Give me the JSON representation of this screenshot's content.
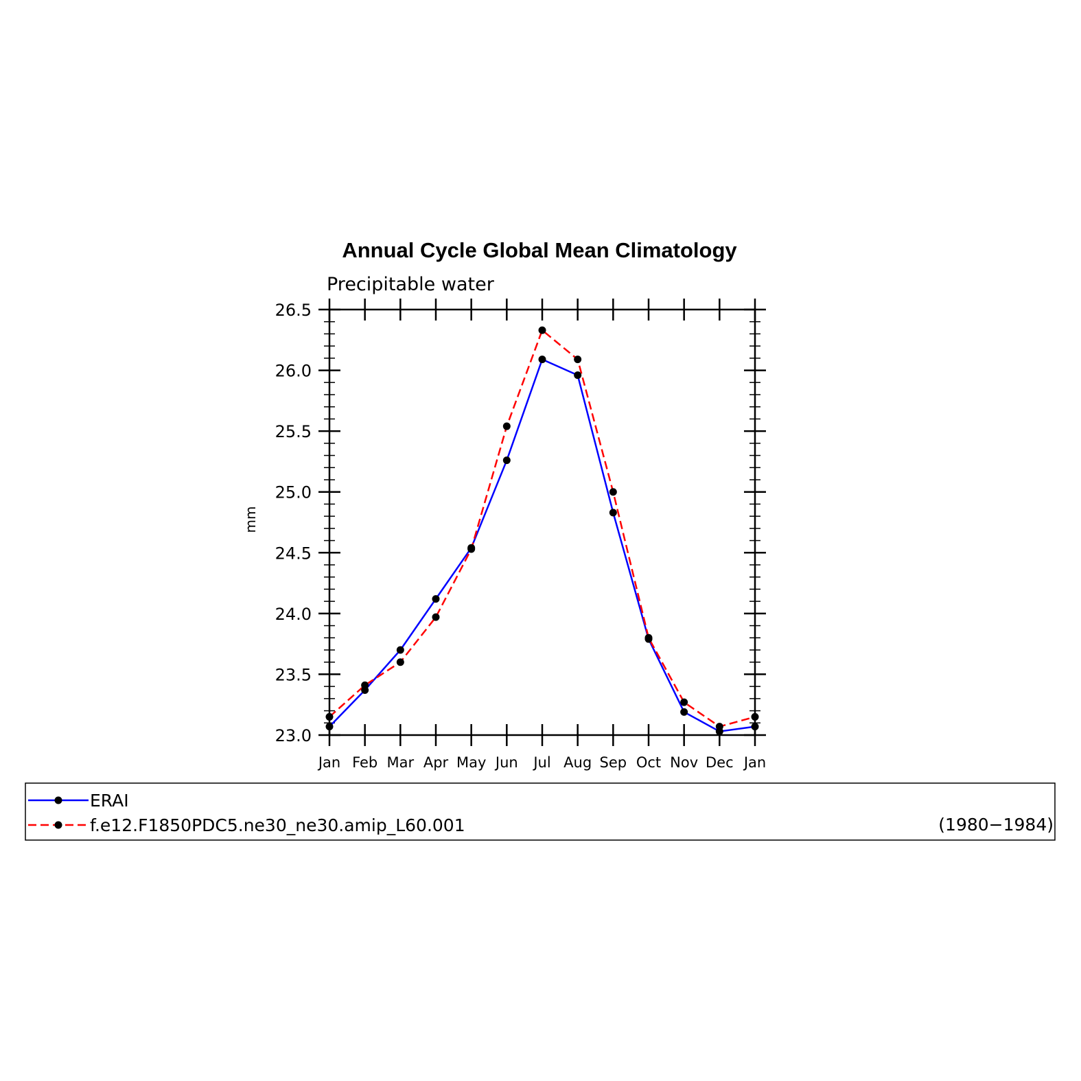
{
  "chart_data": {
    "type": "line",
    "title": "Annual Cycle Global Mean Climatology",
    "subtitle": "Precipitable water",
    "xlabel": "",
    "ylabel": "mm",
    "categories": [
      "Jan",
      "Feb",
      "Mar",
      "Apr",
      "May",
      "Jun",
      "Jul",
      "Aug",
      "Sep",
      "Oct",
      "Nov",
      "Dec",
      "Jan"
    ],
    "ylim": [
      23.0,
      26.5
    ],
    "yticks": [
      "23.0",
      "23.5",
      "24.0",
      "24.5",
      "25.0",
      "25.5",
      "26.0",
      "26.5"
    ],
    "series": [
      {
        "name": "ERAI",
        "color": "#0000ff",
        "line_style": "solid",
        "values": [
          23.07,
          23.37,
          23.7,
          24.12,
          24.54,
          25.26,
          26.09,
          25.96,
          24.83,
          23.79,
          23.19,
          23.03,
          23.07
        ]
      },
      {
        "name": "f.e12.F1850PDC5.ne30_ne30.amip_L60.001",
        "color": "#ff0000",
        "line_style": "dashed",
        "values": [
          23.15,
          23.41,
          23.6,
          23.97,
          24.53,
          25.54,
          26.33,
          26.09,
          25.0,
          23.8,
          23.27,
          23.07,
          23.15
        ]
      }
    ],
    "legend_note": "(1980−1984)",
    "grid": false,
    "legend_position": "bottom"
  }
}
